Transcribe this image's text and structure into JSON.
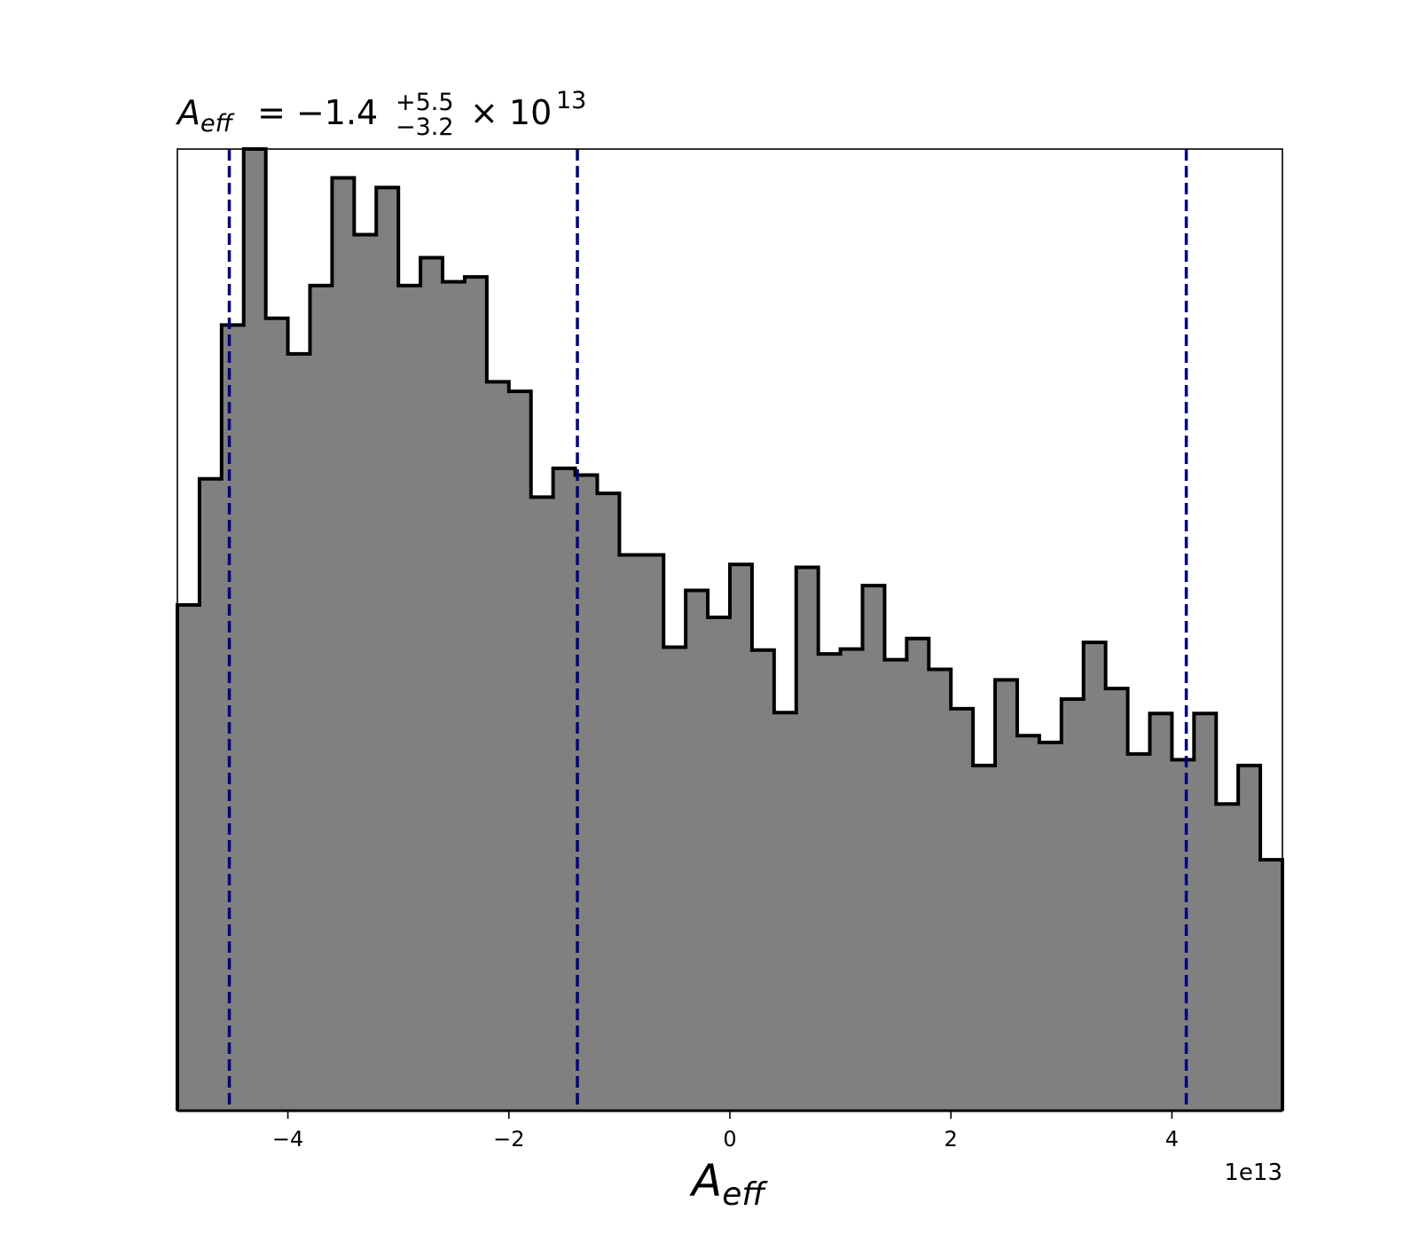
{
  "chart_data": {
    "type": "histogram",
    "title": {
      "variable": "A",
      "variable_subscript": "eff",
      "equals": "=",
      "value": "−1.4",
      "upper_error": "+5.5",
      "lower_error": "−3.2",
      "times_power": "× 10",
      "exponent": "13"
    },
    "xlabel": {
      "main": "A",
      "subscript": "eff"
    },
    "x_offset_label": "1e13",
    "xlim": [
      -5.0,
      5.0
    ],
    "ylim": [
      0,
      1.0
    ],
    "xticks": [
      -4,
      -2,
      0,
      2,
      4
    ],
    "xtick_labels": [
      "−4",
      "−2",
      "0",
      "2",
      "4"
    ],
    "bin_edges": [
      -5.0,
      -4.8,
      -4.6,
      -4.4,
      -4.2,
      -4.0,
      -3.8,
      -3.6,
      -3.4,
      -3.2,
      -3.0,
      -2.8,
      -2.6,
      -2.4,
      -2.2,
      -2.0,
      -1.8,
      -1.6,
      -1.4,
      -1.2,
      -1.0,
      -0.8,
      -0.6,
      -0.4,
      -0.2,
      0.0,
      0.2,
      0.4,
      0.6,
      0.8,
      1.0,
      1.2,
      1.4,
      1.6,
      1.8,
      2.0,
      2.2,
      2.4,
      2.6,
      2.8,
      3.0,
      3.2,
      3.4,
      3.6,
      3.8,
      4.0,
      4.2,
      4.4,
      4.6,
      4.8,
      5.0
    ],
    "counts": [
      0.526,
      0.657,
      0.817,
      1.0,
      0.824,
      0.787,
      0.858,
      0.97,
      0.911,
      0.96,
      0.858,
      0.887,
      0.862,
      0.867,
      0.758,
      0.748,
      0.638,
      0.668,
      0.661,
      0.642,
      0.578,
      0.578,
      0.482,
      0.541,
      0.513,
      0.568,
      0.479,
      0.414,
      0.565,
      0.475,
      0.48,
      0.546,
      0.469,
      0.491,
      0.459,
      0.418,
      0.359,
      0.448,
      0.39,
      0.383,
      0.428,
      0.487,
      0.439,
      0.371,
      0.413,
      0.365,
      0.413,
      0.319,
      0.359,
      0.261
    ],
    "fill_color": "#808080",
    "edge_color": "#000000",
    "quantile_lines": [
      -4.53,
      -1.38,
      4.13
    ],
    "quantile_line_color": "#00007f",
    "quantile_line_style": "dashed",
    "grid": false,
    "yticks_visible": false
  }
}
